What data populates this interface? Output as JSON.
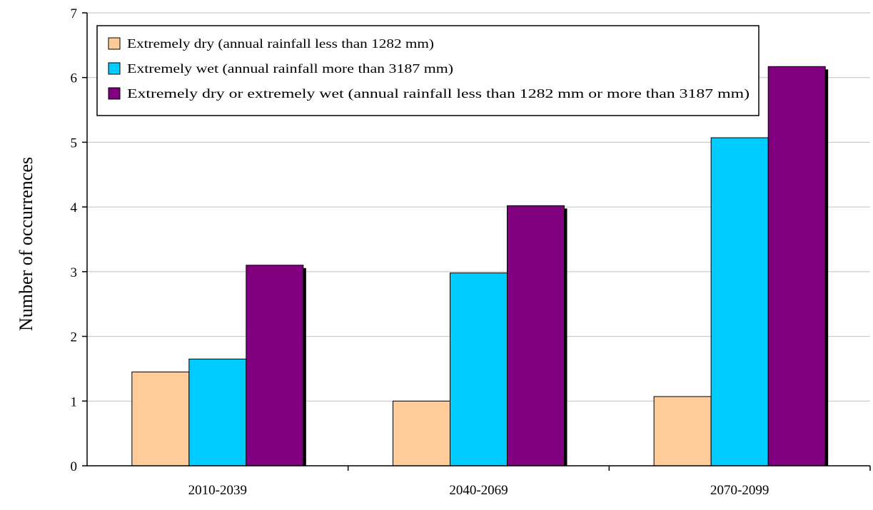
{
  "chart_data": {
    "type": "bar",
    "title": "",
    "xlabel": "",
    "ylabel": "Number of occurrences",
    "ylim": [
      0,
      7
    ],
    "yticks": [
      "0",
      "1",
      "2",
      "3",
      "4",
      "5",
      "6",
      "7"
    ],
    "grid": true,
    "legend_position": "top-left",
    "categories": [
      "2010-2039",
      "2040-2069",
      "2070-2099"
    ],
    "series": [
      {
        "name": "Extremely dry (annual rainfall less than 1282 mm)",
        "color": "#FFCC99",
        "values": [
          1.45,
          1.0,
          1.07
        ]
      },
      {
        "name": "Extremely wet (annual rainfall more than 3187 mm)",
        "color": "#00CCFF",
        "values": [
          1.65,
          2.98,
          5.07
        ]
      },
      {
        "name": "Extremely dry or extremely wet (annual rainfall less than 1282 mm or more than 3187 mm)",
        "color": "#800080",
        "values": [
          3.1,
          4.02,
          6.17
        ]
      }
    ]
  }
}
